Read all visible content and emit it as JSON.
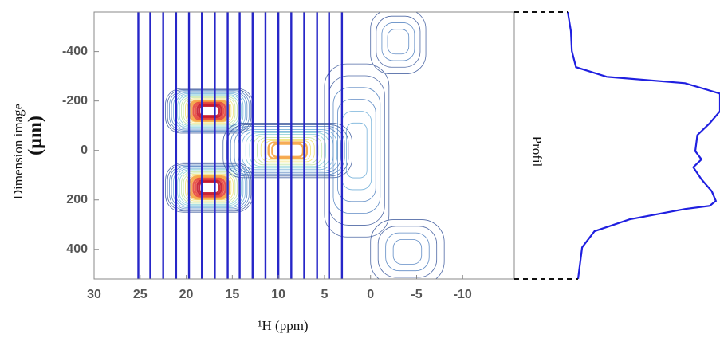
{
  "chart_data": {
    "type": "contour",
    "x_label": "¹H (ppm)",
    "y_label": "Dimension image",
    "y_unit": "(µm)",
    "xlim": [
      30,
      -15.6
    ],
    "ylim": [
      -560,
      520
    ],
    "xticks": [
      30,
      25,
      20,
      15,
      10,
      5,
      0,
      -5,
      -10
    ],
    "yticks": [
      -400,
      -200,
      0,
      200,
      400
    ],
    "slices": {
      "color": "#2626c8",
      "x": [
        25.2,
        23.9,
        22.5,
        21.1,
        19.7,
        18.3,
        16.9,
        15.5,
        14.2,
        12.8,
        11.4,
        10.0,
        8.6,
        7.2,
        5.8,
        4.5,
        3.1
      ]
    },
    "contour_colors": [
      "#3d5a9c",
      "#4f7fbf",
      "#68aad6",
      "#86cfd6",
      "#bfe39c",
      "#f1e06a",
      "#f5a341",
      "#e5463a",
      "#c4162a"
    ],
    "peaks": [
      {
        "x": 17.5,
        "y": -160,
        "width": 9.5,
        "height": 180,
        "levels": 9
      },
      {
        "x": 17.5,
        "y": 150,
        "width": 9.5,
        "height": 200,
        "levels": 9
      },
      {
        "x": 9,
        "y": 0,
        "width": 14,
        "height": 220,
        "levels": 7
      },
      {
        "x": 1.5,
        "y": 0,
        "width": 7,
        "height": 700,
        "levels": 3
      },
      {
        "x": -3,
        "y": -440,
        "width": 6,
        "height": 260,
        "levels": 2
      },
      {
        "x": -4,
        "y": 410,
        "width": 8,
        "height": 260,
        "levels": 2
      }
    ],
    "profile": {
      "label": "Profil",
      "color": "#1f1fe0",
      "xlim": [
        0,
        100
      ],
      "y": [
        -560,
        -483,
        -402,
        -337,
        -298,
        -272,
        -230,
        -159,
        -110,
        -62,
        3,
        36,
        68,
        117,
        165,
        204,
        224,
        237,
        279,
        327,
        392,
        520
      ],
      "values": [
        26,
        27.5,
        28,
        30,
        45,
        83,
        100,
        100,
        95,
        89,
        88,
        91,
        87,
        91,
        96,
        98,
        95,
        83,
        56,
        39,
        33,
        31
      ]
    }
  }
}
